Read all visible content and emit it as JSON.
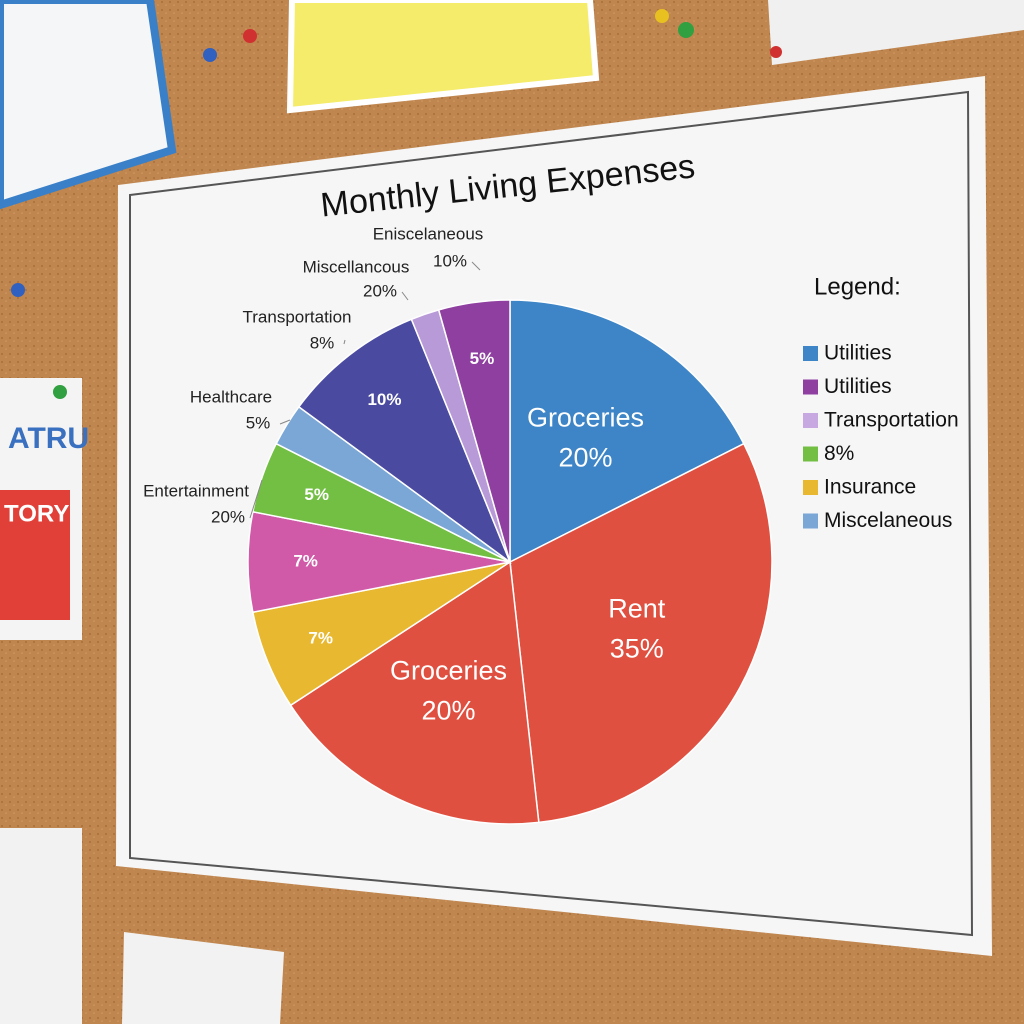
{
  "chart_data": {
    "type": "pie",
    "title": "Monthly Living Expenses",
    "categories": [
      "Groceries",
      "Rent",
      "Groceries",
      null,
      null,
      null,
      null,
      null,
      null,
      null
    ],
    "values": [
      20,
      35,
      20,
      7,
      7,
      5,
      3,
      10,
      2,
      5
    ],
    "value_labels": [
      "20%",
      "35%",
      "20%",
      "7%",
      "7%",
      "5%",
      null,
      "10%",
      null,
      "5%"
    ],
    "colors": [
      "#3d85c6",
      "#e05040",
      "#e05040",
      "#e8b830",
      "#d05aa8",
      "#72bf44",
      "#7ba7d6",
      "#4a4aa0",
      "#b89ad8",
      "#8e3fa0"
    ],
    "annotations": [
      {
        "name": "Eniscelaneous",
        "label": "10%"
      },
      {
        "name": "Miscellancous",
        "label": "20%"
      },
      {
        "name": "Transportation",
        "label": "8%"
      },
      {
        "name": "Healthcare",
        "label": "5%"
      },
      {
        "name": "Entertainment",
        "label": "20%"
      }
    ],
    "legend_title": "Legend:",
    "legend": [
      {
        "name": "Utilities",
        "color": "#3d85c6"
      },
      {
        "name": "Utilities",
        "color": "#8e3fa0"
      },
      {
        "name": "Transportation",
        "color": "#c8a8e0"
      },
      {
        "name": "8%",
        "color": "#72bf44"
      },
      {
        "name": "Insurance",
        "color": "#e8b830"
      },
      {
        "name": "Miscelaneous",
        "color": "#7ba7d6"
      }
    ]
  },
  "background_notes": [
    "ATRU",
    "TORY"
  ]
}
